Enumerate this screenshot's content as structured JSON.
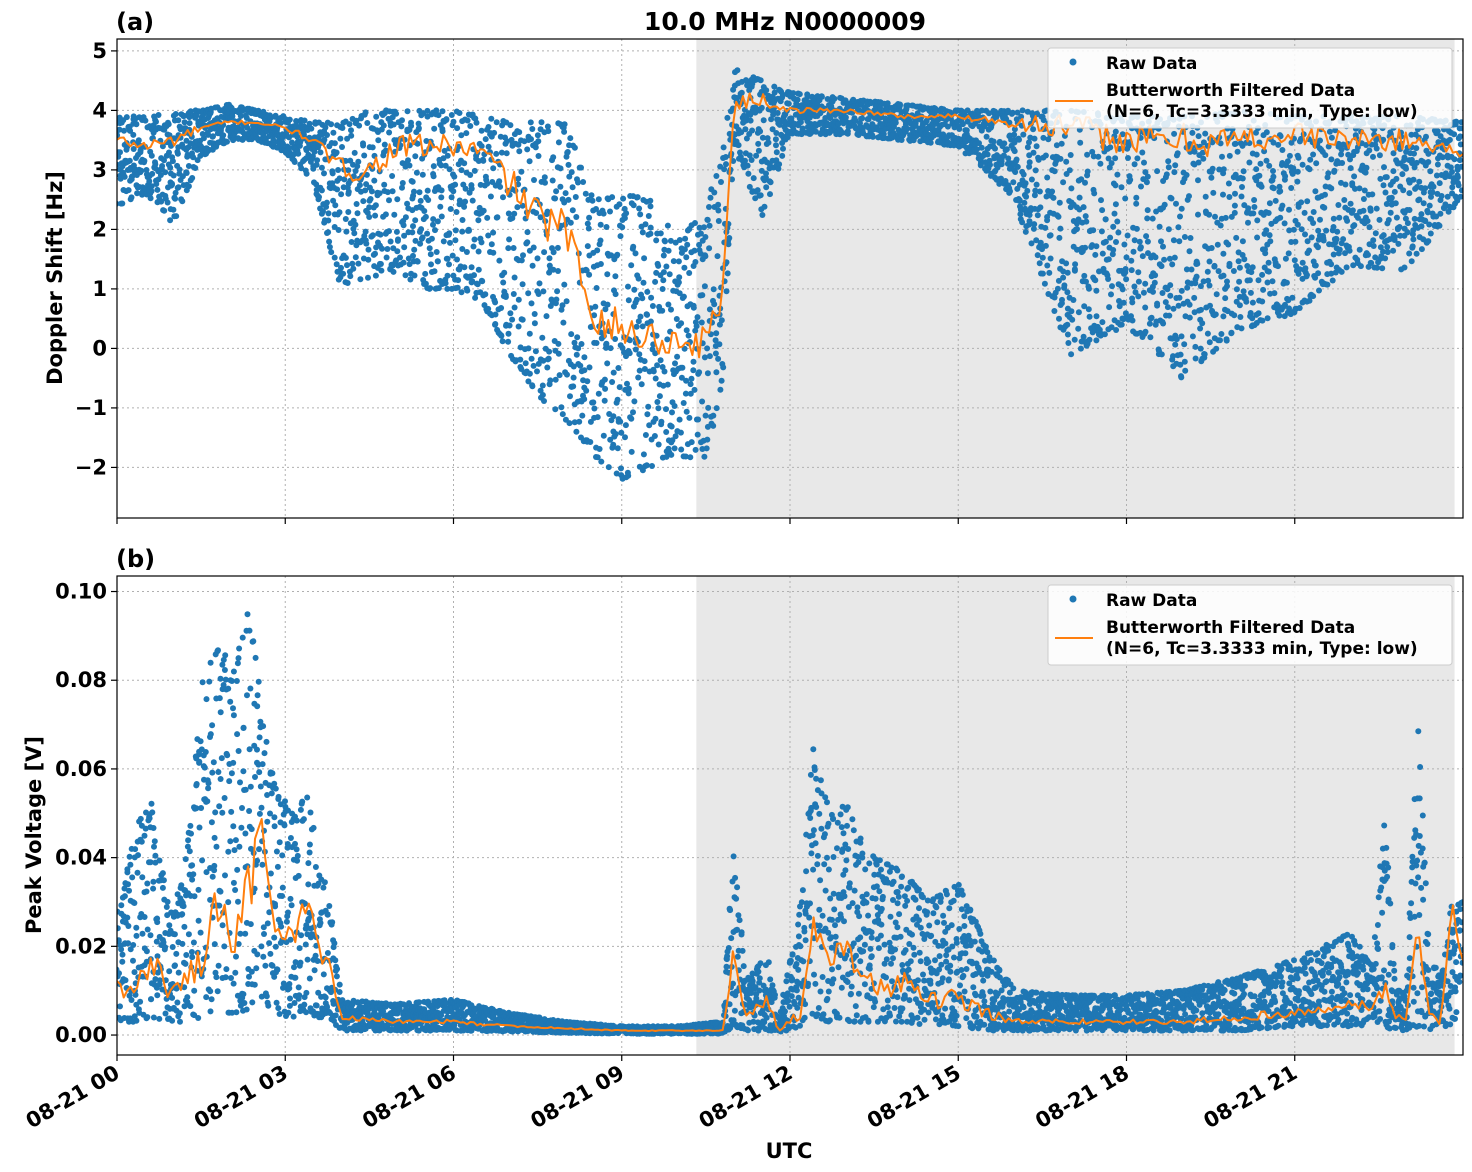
{
  "figure": {
    "title": "10.0 MHz N0000009",
    "xlabel": "UTC",
    "x_tick_labels": [
      "08-21 00",
      "08-21 03",
      "08-21 06",
      "08-21 09",
      "08-21 12",
      "08-21 15",
      "08-21 18",
      "08-21 21"
    ],
    "colors": {
      "raw": "#1f77b4",
      "filtered": "#ff7f0e",
      "shade": "#e8e8e8",
      "grid": "#b0b0b0"
    }
  },
  "chart_data": [
    {
      "type": "scatter",
      "panel_label": "(a)",
      "ylabel": "Doppler Shift [Hz]",
      "xlim_hours": [
        0,
        24
      ],
      "x_ticks_hours": [
        0,
        3,
        6,
        9,
        12,
        15,
        18,
        21
      ],
      "ylim": [
        -2.85,
        5.2
      ],
      "y_ticks": [
        5,
        4,
        3,
        2,
        1,
        0,
        -1,
        -2
      ],
      "y_tick_labels": [
        "5",
        "4",
        "3",
        "2",
        "1",
        "0",
        "−1",
        "−2"
      ],
      "shaded_interval_hours": [
        10.33,
        23.85
      ],
      "grid": true,
      "legend": {
        "placement": "upper right",
        "entries": [
          "Raw Data",
          "Butterworth Filtered Data",
          "(N=6, Tc=3.3333 min, Type: low)"
        ]
      },
      "series": [
        {
          "name": "Butterworth Filtered Data",
          "style": "line",
          "x": [
            0,
            0.5,
            1,
            1.5,
            2,
            2.5,
            3,
            3.5,
            4,
            4.5,
            5,
            5.5,
            6,
            6.5,
            7,
            7.5,
            8,
            8.5,
            9,
            9.5,
            10,
            10.5,
            10.8,
            11,
            11.5,
            12,
            13,
            14,
            15,
            16,
            17,
            18,
            19,
            20,
            21,
            22,
            23,
            24
          ],
          "y": [
            3.5,
            3.4,
            3.5,
            3.7,
            3.8,
            3.8,
            3.7,
            3.5,
            3.0,
            3.0,
            3.4,
            3.4,
            3.4,
            3.3,
            2.8,
            2.2,
            2.0,
            0.6,
            0.3,
            0.2,
            0.1,
            0.1,
            1.0,
            4.1,
            4.2,
            4.0,
            4.0,
            3.9,
            3.9,
            3.8,
            3.7,
            3.5,
            3.5,
            3.5,
            3.6,
            3.5,
            3.5,
            3.3
          ]
        },
        {
          "name": "Raw Data",
          "style": "markers",
          "band_x": [
            0,
            0.5,
            1,
            1.5,
            2,
            2.5,
            3,
            3.5,
            4,
            4.5,
            5,
            5.5,
            6,
            6.5,
            7,
            7.5,
            8,
            8.5,
            9,
            9.5,
            10,
            10.5,
            10.8,
            11,
            11.5,
            12,
            13,
            14,
            15,
            16,
            17,
            18,
            19,
            20,
            21,
            22,
            23,
            24
          ],
          "band_low": [
            2.4,
            2.6,
            2.1,
            3.2,
            3.5,
            3.5,
            3.3,
            2.8,
            1.0,
            1.2,
            1.3,
            1.0,
            1.0,
            0.8,
            -0.1,
            -0.8,
            -1.2,
            -1.8,
            -2.2,
            -2.0,
            -1.8,
            -1.9,
            -0.5,
            3.4,
            2.2,
            3.6,
            3.6,
            3.5,
            3.4,
            2.5,
            -0.1,
            0.4,
            -0.5,
            0.3,
            0.6,
            1.4,
            1.3,
            2.6
          ],
          "band_high": [
            3.9,
            3.9,
            4.0,
            4.0,
            4.1,
            4.0,
            3.9,
            3.8,
            3.8,
            4.0,
            4.0,
            4.0,
            4.0,
            3.9,
            3.8,
            3.8,
            3.8,
            2.5,
            2.6,
            2.5,
            1.8,
            2.4,
            3.2,
            4.7,
            4.5,
            4.3,
            4.2,
            4.1,
            4.0,
            4.0,
            4.0,
            3.9,
            3.9,
            4.0,
            3.9,
            3.9,
            3.9,
            3.8
          ]
        }
      ]
    },
    {
      "type": "scatter",
      "panel_label": "(b)",
      "ylabel": "Peak Voltage [V]",
      "xlim_hours": [
        0,
        24
      ],
      "x_ticks_hours": [
        0,
        3,
        6,
        9,
        12,
        15,
        18,
        21
      ],
      "ylim": [
        -0.0045,
        0.1035
      ],
      "y_ticks": [
        0.1,
        0.08,
        0.06,
        0.04,
        0.02,
        0.0
      ],
      "y_tick_labels": [
        "0.10",
        "0.08",
        "0.06",
        "0.04",
        "0.02",
        "0.00"
      ],
      "shaded_interval_hours": [
        10.33,
        23.85
      ],
      "grid": true,
      "legend": {
        "placement": "upper right",
        "entries": [
          "Raw Data",
          "Butterworth Filtered Data",
          "(N=6, Tc=3.3333 min, Type: low)"
        ]
      },
      "series": [
        {
          "name": "Butterworth Filtered Data",
          "style": "line",
          "x": [
            0,
            0.3,
            0.6,
            0.9,
            1.2,
            1.5,
            1.8,
            2.1,
            2.4,
            2.6,
            2.8,
            3.1,
            3.4,
            3.6,
            3.8,
            4.0,
            5,
            6,
            7,
            8,
            9,
            10,
            10.8,
            11.0,
            11.2,
            11.6,
            11.8,
            12.2,
            12.4,
            12.7,
            13.0,
            13.5,
            14.0,
            14.5,
            15,
            15.5,
            16,
            17,
            18,
            19,
            20,
            21,
            22,
            22.4,
            22.6,
            22.8,
            23.0,
            23.2,
            23.4,
            23.6,
            23.8,
            24
          ],
          "y": [
            0.012,
            0.008,
            0.018,
            0.01,
            0.012,
            0.016,
            0.03,
            0.022,
            0.035,
            0.05,
            0.02,
            0.022,
            0.03,
            0.018,
            0.015,
            0.004,
            0.003,
            0.003,
            0.002,
            0.0015,
            0.001,
            0.001,
            0.001,
            0.02,
            0.004,
            0.008,
            0.001,
            0.005,
            0.025,
            0.015,
            0.02,
            0.01,
            0.012,
            0.008,
            0.008,
            0.005,
            0.003,
            0.003,
            0.003,
            0.003,
            0.004,
            0.005,
            0.007,
            0.006,
            0.012,
            0.004,
            0.004,
            0.025,
            0.004,
            0.003,
            0.03,
            0.016
          ]
        },
        {
          "name": "Raw Data",
          "style": "markers",
          "band_x": [
            0,
            0.3,
            0.6,
            0.9,
            1.2,
            1.5,
            1.8,
            2.1,
            2.4,
            2.6,
            2.8,
            3.1,
            3.4,
            3.6,
            3.8,
            4.0,
            5,
            6,
            7,
            8,
            9,
            10,
            10.8,
            11.0,
            11.2,
            11.6,
            11.8,
            12.2,
            12.4,
            12.7,
            13.0,
            13.5,
            14.0,
            14.5,
            15,
            15.5,
            16,
            17,
            18,
            19,
            20,
            21,
            22,
            22.4,
            22.6,
            22.8,
            23.0,
            23.2,
            23.4,
            23.6,
            23.8,
            24
          ],
          "band_low": [
            0.003,
            0.003,
            0.004,
            0.003,
            0.003,
            0.004,
            0.005,
            0.005,
            0.006,
            0.006,
            0.005,
            0.004,
            0.005,
            0.004,
            0.004,
            0.001,
            0.001,
            0.001,
            0.0008,
            0.0005,
            0.0003,
            0.0003,
            0.0003,
            0.002,
            0.001,
            0.001,
            0.0005,
            0.002,
            0.004,
            0.003,
            0.003,
            0.003,
            0.003,
            0.002,
            0.002,
            0.001,
            0.001,
            0.001,
            0.001,
            0.001,
            0.001,
            0.002,
            0.002,
            0.002,
            0.002,
            0.001,
            0.001,
            0.002,
            0.001,
            0.001,
            0.002,
            0.004
          ],
          "band_high": [
            0.028,
            0.045,
            0.055,
            0.03,
            0.035,
            0.08,
            0.087,
            0.085,
            0.098,
            0.07,
            0.059,
            0.05,
            0.054,
            0.04,
            0.03,
            0.008,
            0.007,
            0.008,
            0.005,
            0.003,
            0.002,
            0.002,
            0.003,
            0.045,
            0.012,
            0.018,
            0.004,
            0.03,
            0.065,
            0.05,
            0.052,
            0.04,
            0.037,
            0.03,
            0.035,
            0.02,
            0.01,
            0.009,
            0.009,
            0.01,
            0.013,
            0.017,
            0.023,
            0.015,
            0.052,
            0.01,
            0.01,
            0.073,
            0.02,
            0.012,
            0.03,
            0.03
          ]
        }
      ]
    }
  ]
}
